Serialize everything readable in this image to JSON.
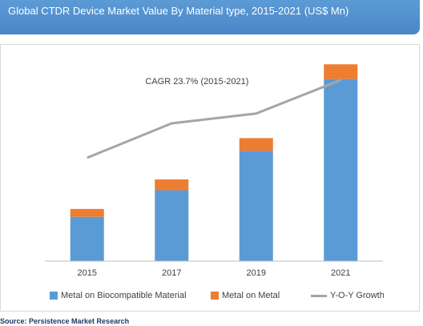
{
  "header": {
    "title": "Global CTDR Device Market Value By Material type, 2015-2021 (US$ Mn)"
  },
  "colors": {
    "header_bg": "#5b9bd5",
    "biocompatible": "#5b9bd5",
    "metal_on_metal": "#ed7d31",
    "growth_line": "#a5a5a5"
  },
  "chart_data": {
    "type": "bar",
    "stacked": true,
    "categories": [
      "2015",
      "2017",
      "2019",
      "2021"
    ],
    "series": [
      {
        "name": "Metal on Biocompatible Material",
        "type": "bar",
        "values": [
          45,
          72,
          112,
          185
        ]
      },
      {
        "name": "Metal on Metal",
        "type": "bar",
        "values": [
          8,
          11,
          13,
          15
        ]
      },
      {
        "name": "Y-O-Y Growth",
        "type": "line",
        "values": [
          105,
          140,
          150,
          184
        ]
      }
    ],
    "ylim": [
      0,
      210
    ],
    "grid": false,
    "legend_position": "bottom",
    "annotation": "CAGR 23.7% (2015-2021)"
  },
  "source": "Source: Persistence Market Research"
}
